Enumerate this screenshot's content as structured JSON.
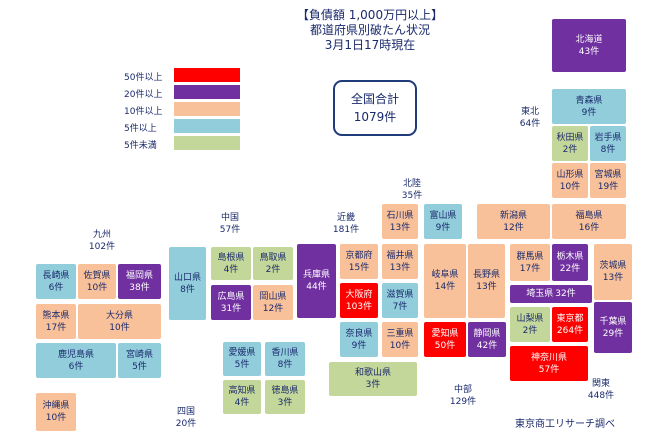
{
  "title": {
    "line1": "【負債額 1,000万円以上】",
    "line2": "都道府県別破たん状況",
    "line3": "3月1日17時現在"
  },
  "total": {
    "label": "全国合計",
    "value": "1079件"
  },
  "legend": [
    {
      "label": "50件以上",
      "color": "#ff0000"
    },
    {
      "label": "20件以上",
      "color": "#7030a0"
    },
    {
      "label": "10件以上",
      "color": "#f8c19a"
    },
    {
      "label": "5件以上",
      "color": "#92cddc"
    },
    {
      "label": "5件未満",
      "color": "#c4d79b"
    }
  ],
  "regions": {
    "kyushu": {
      "name": "九州",
      "count": "102件"
    },
    "chugoku": {
      "name": "中国",
      "count": "57件"
    },
    "kinki": {
      "name": "近畿",
      "count": "181件"
    },
    "hokuriku": {
      "name": "北陸",
      "count": "35件"
    },
    "tohoku": {
      "name": "東北",
      "count": "64件"
    },
    "shikoku": {
      "name": "四国",
      "count": "20件"
    },
    "chubu": {
      "name": "中部",
      "count": "129件"
    },
    "kanto": {
      "name": "関東",
      "count": "448件"
    }
  },
  "prefectures": {
    "hokkaido": {
      "name": "北海道",
      "count": "43件"
    },
    "aomori": {
      "name": "青森県",
      "count": "9件"
    },
    "akita": {
      "name": "秋田県",
      "count": "2件"
    },
    "iwate": {
      "name": "岩手県",
      "count": "8件"
    },
    "yamagata": {
      "name": "山形県",
      "count": "10件"
    },
    "miyagi": {
      "name": "宮城県",
      "count": "19件"
    },
    "fukushima": {
      "name": "福島県",
      "count": "16件"
    },
    "niigata": {
      "name": "新潟県",
      "count": "12件"
    },
    "ishikawa": {
      "name": "石川県",
      "count": "13件"
    },
    "toyama": {
      "name": "富山県",
      "count": "9件"
    },
    "fukui": {
      "name": "福井県",
      "count": "13件"
    },
    "kyoto": {
      "name": "京都府",
      "count": "15件"
    },
    "shiga": {
      "name": "滋賀県",
      "count": "7件"
    },
    "osaka": {
      "name": "大阪府",
      "count": "103件"
    },
    "nara": {
      "name": "奈良県",
      "count": "9件"
    },
    "mie": {
      "name": "三重県",
      "count": "10件"
    },
    "wakayama": {
      "name": "和歌山県",
      "count": "3件"
    },
    "hyogo": {
      "name": "兵庫県",
      "count": "44件"
    },
    "gifu": {
      "name": "岐阜県",
      "count": "14件"
    },
    "nagano": {
      "name": "長野県",
      "count": "13件"
    },
    "aichi": {
      "name": "愛知県",
      "count": "50件"
    },
    "shizuoka": {
      "name": "静岡県",
      "count": "42件"
    },
    "gunma": {
      "name": "群馬県",
      "count": "17件"
    },
    "tochigi": {
      "name": "栃木県",
      "count": "22件"
    },
    "ibaraki": {
      "name": "茨城県",
      "count": "13件"
    },
    "saitama": {
      "name": "埼玉県",
      "count": "32件"
    },
    "yamanashi": {
      "name": "山梨県",
      "count": "2件"
    },
    "tokyo": {
      "name": "東京都",
      "count": "264件"
    },
    "chiba": {
      "name": "千葉県",
      "count": "29件"
    },
    "kanagawa": {
      "name": "神奈川県",
      "count": "57件"
    },
    "tottori": {
      "name": "鳥取県",
      "count": "2件"
    },
    "shimane": {
      "name": "島根県",
      "count": "4件"
    },
    "okayama": {
      "name": "岡山県",
      "count": "12件"
    },
    "hiroshima": {
      "name": "広島県",
      "count": "31件"
    },
    "yamaguchi": {
      "name": "山口県",
      "count": "8件"
    },
    "ehime": {
      "name": "愛媛県",
      "count": "5件"
    },
    "kagawa": {
      "name": "香川県",
      "count": "8件"
    },
    "kochi": {
      "name": "高知県",
      "count": "4件"
    },
    "tokushima": {
      "name": "徳島県",
      "count": "3件"
    },
    "nagasaki": {
      "name": "長崎県",
      "count": "6件"
    },
    "saga": {
      "name": "佐賀県",
      "count": "10件"
    },
    "fukuoka": {
      "name": "福岡県",
      "count": "38件"
    },
    "kumamoto": {
      "name": "熊本県",
      "count": "17件"
    },
    "oita": {
      "name": "大分県",
      "count": "10件"
    },
    "kagoshima": {
      "name": "鹿児島県",
      "count": "6件"
    },
    "miyazaki": {
      "name": "宮崎県",
      "count": "5件"
    },
    "okinawa": {
      "name": "沖縄県",
      "count": "10件"
    }
  },
  "credit": "東京商工リサーチ調べ"
}
